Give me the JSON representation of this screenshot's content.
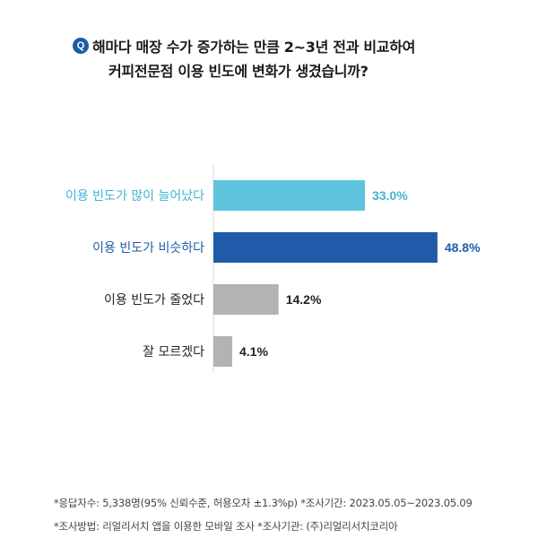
{
  "question": {
    "badge": "Q",
    "line1": "해마다 매장 수가 증가하는 만큼 2~3년 전과 비교하여",
    "line2": "커피전문점 이용 빈도에 변화가 생겼습니까?"
  },
  "chart_data": {
    "type": "bar",
    "orientation": "horizontal",
    "title": "해마다 매장 수가 증가하는 만큼 2~3년 전과 비교하여 커피전문점 이용 빈도에 변화가 생겼습니까?",
    "categories": [
      "이용 빈도가 많이 늘어났다",
      "이용 빈도가 비슷하다",
      "이용 빈도가 줄었다",
      "잘 모르겠다"
    ],
    "values": [
      33.0,
      48.8,
      14.2,
      4.1
    ],
    "value_labels": [
      "33.0%",
      "48.8%",
      "14.2%",
      "4.1%"
    ],
    "colors": [
      "#5ec4dd",
      "#1f5ba8",
      "#b3b3b3",
      "#b3b3b3"
    ],
    "label_colors": [
      "#3fb3d3",
      "#1f5ba8",
      "#222222",
      "#222222"
    ],
    "value_colors": [
      "#3fb3d3",
      "#1f5ba8",
      "#222222",
      "#222222"
    ],
    "xlim": [
      0,
      52
    ],
    "grid": false
  },
  "footnotes": {
    "line1": "*응답자수: 5,338명(95% 신뢰수준, 허용오차 ±1.3%p)  *조사기간: 2023.05.05~2023.05.09",
    "line2": "*조사방법: 리얼리서치 앱을 이용한 모바일 조사  *조사기관: (주)리얼리서치코리아"
  }
}
